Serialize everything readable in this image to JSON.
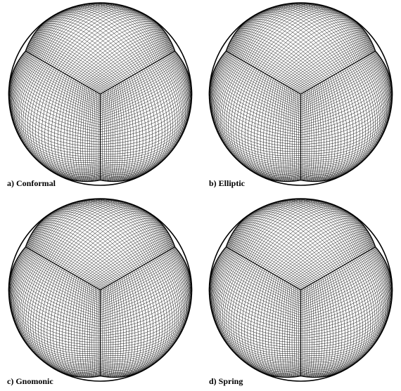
{
  "panels": [
    {
      "id": "conformal",
      "label": "a) Conformal",
      "warp": 1.0
    },
    {
      "id": "elliptic",
      "label": "b) Elliptic",
      "warp": 0.8
    },
    {
      "id": "gnomonic",
      "label": "c) Gnomonic",
      "warp": 0.0
    },
    {
      "id": "spring",
      "label": "d) Spring",
      "warp": 0.5
    }
  ],
  "colors": {
    "grid": "#000000",
    "background": "#ffffff"
  }
}
